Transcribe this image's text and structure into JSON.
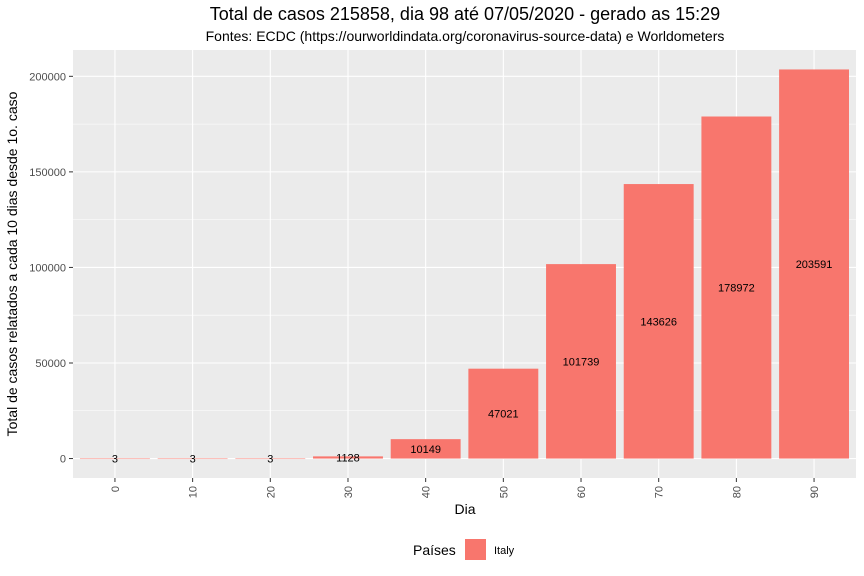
{
  "chart_data": {
    "type": "bar",
    "title": "Total de casos 215858, dia 98 até 07/05/2020 - gerado as 15:29",
    "subtitle": "Fontes: ECDC (https://ourworldindata.org/coronavirus-source-data) e Worldometers",
    "xlabel": "Dia",
    "ylabel": "Total de casos relatados a cada 10 dias desde 1o. caso",
    "x": [
      0,
      10,
      20,
      30,
      40,
      50,
      60,
      70,
      80,
      90
    ],
    "x_tick_labels": [
      "0",
      "10",
      "20",
      "30",
      "40",
      "50",
      "60",
      "70",
      "80",
      "90"
    ],
    "y_ticks": [
      0,
      50000,
      100000,
      150000,
      200000
    ],
    "y_tick_labels": [
      "0",
      "50000",
      "100000",
      "150000",
      "200000"
    ],
    "xlim": [
      -5.4,
      95.4
    ],
    "ylim": [
      -10180,
      213771
    ],
    "series": [
      {
        "name": "Italy",
        "color": "#F8766D",
        "values": [
          3,
          3,
          3,
          1128,
          10149,
          47021,
          101739,
          143626,
          178972,
          203591
        ],
        "labels": [
          "3",
          "3",
          "3",
          "1128",
          "10149",
          "47021",
          "101739",
          "143626",
          "178972",
          "203591"
        ]
      }
    ],
    "legend": {
      "title": "Países",
      "position": "bottom",
      "entries": [
        "Italy"
      ]
    },
    "grid": true,
    "panel_background": "#EBEBEB",
    "grid_color": "#FFFFFF"
  }
}
